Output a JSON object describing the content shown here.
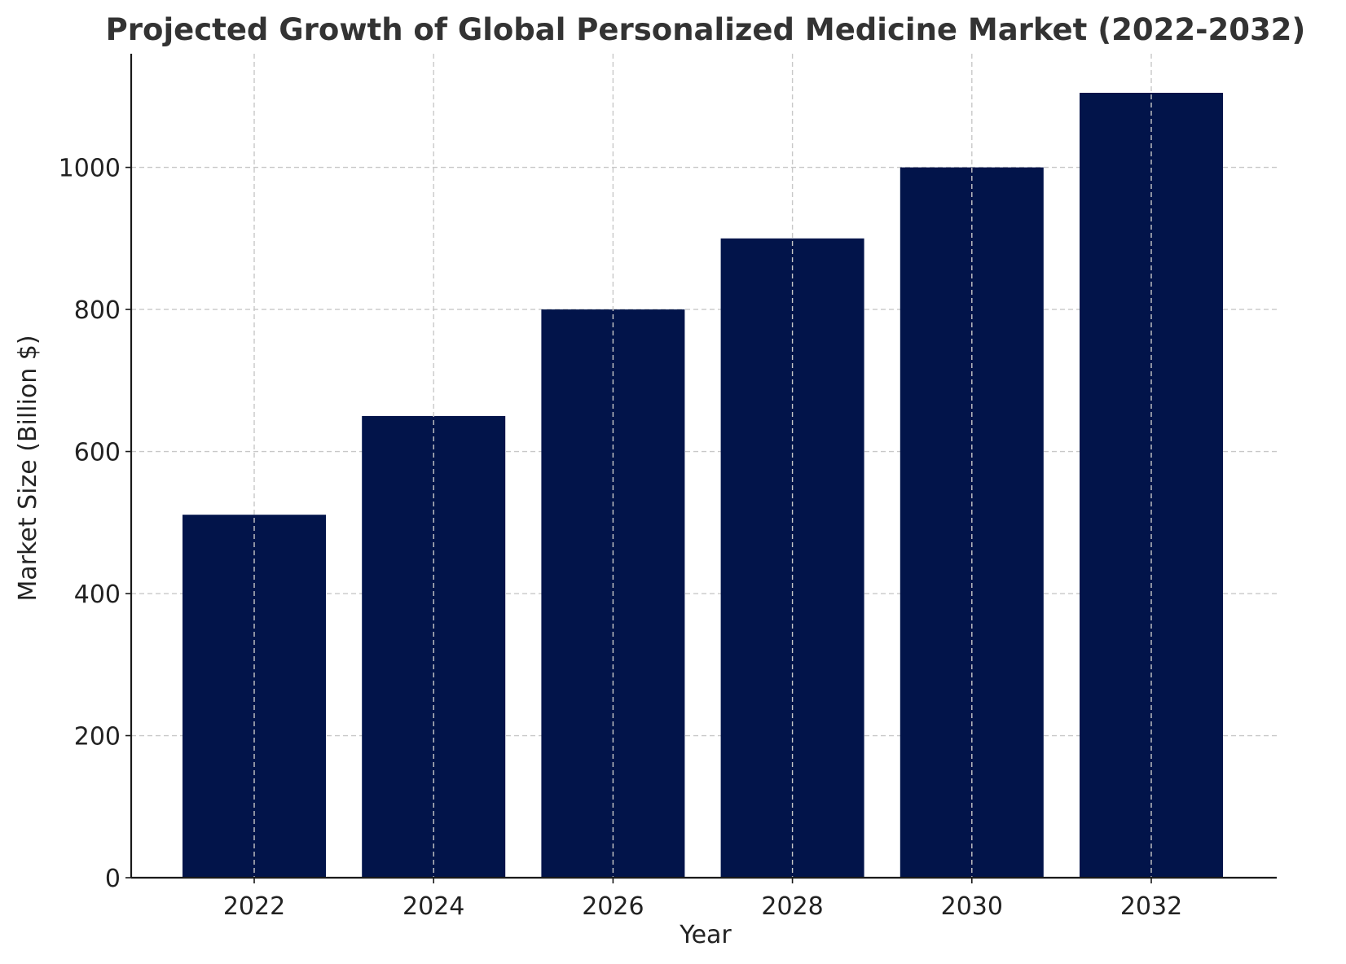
{
  "chart_data": {
    "type": "bar",
    "title": "Projected Growth of Global Personalized Medicine Market (2022-2032)",
    "xlabel": "Year",
    "ylabel": "Market Size (Billion $)",
    "categories": [
      "2022",
      "2024",
      "2026",
      "2028",
      "2030",
      "2032"
    ],
    "values": [
      511,
      650,
      800,
      900,
      1000,
      1105
    ],
    "ylim": [
      0,
      1160
    ],
    "yticks": [
      0,
      200,
      400,
      600,
      800,
      1000
    ],
    "grid": true,
    "bar_color": "#02144a",
    "grid_color": "#c8c8c8",
    "axis_color": "#1a1a1a",
    "title_color": "#333333"
  }
}
